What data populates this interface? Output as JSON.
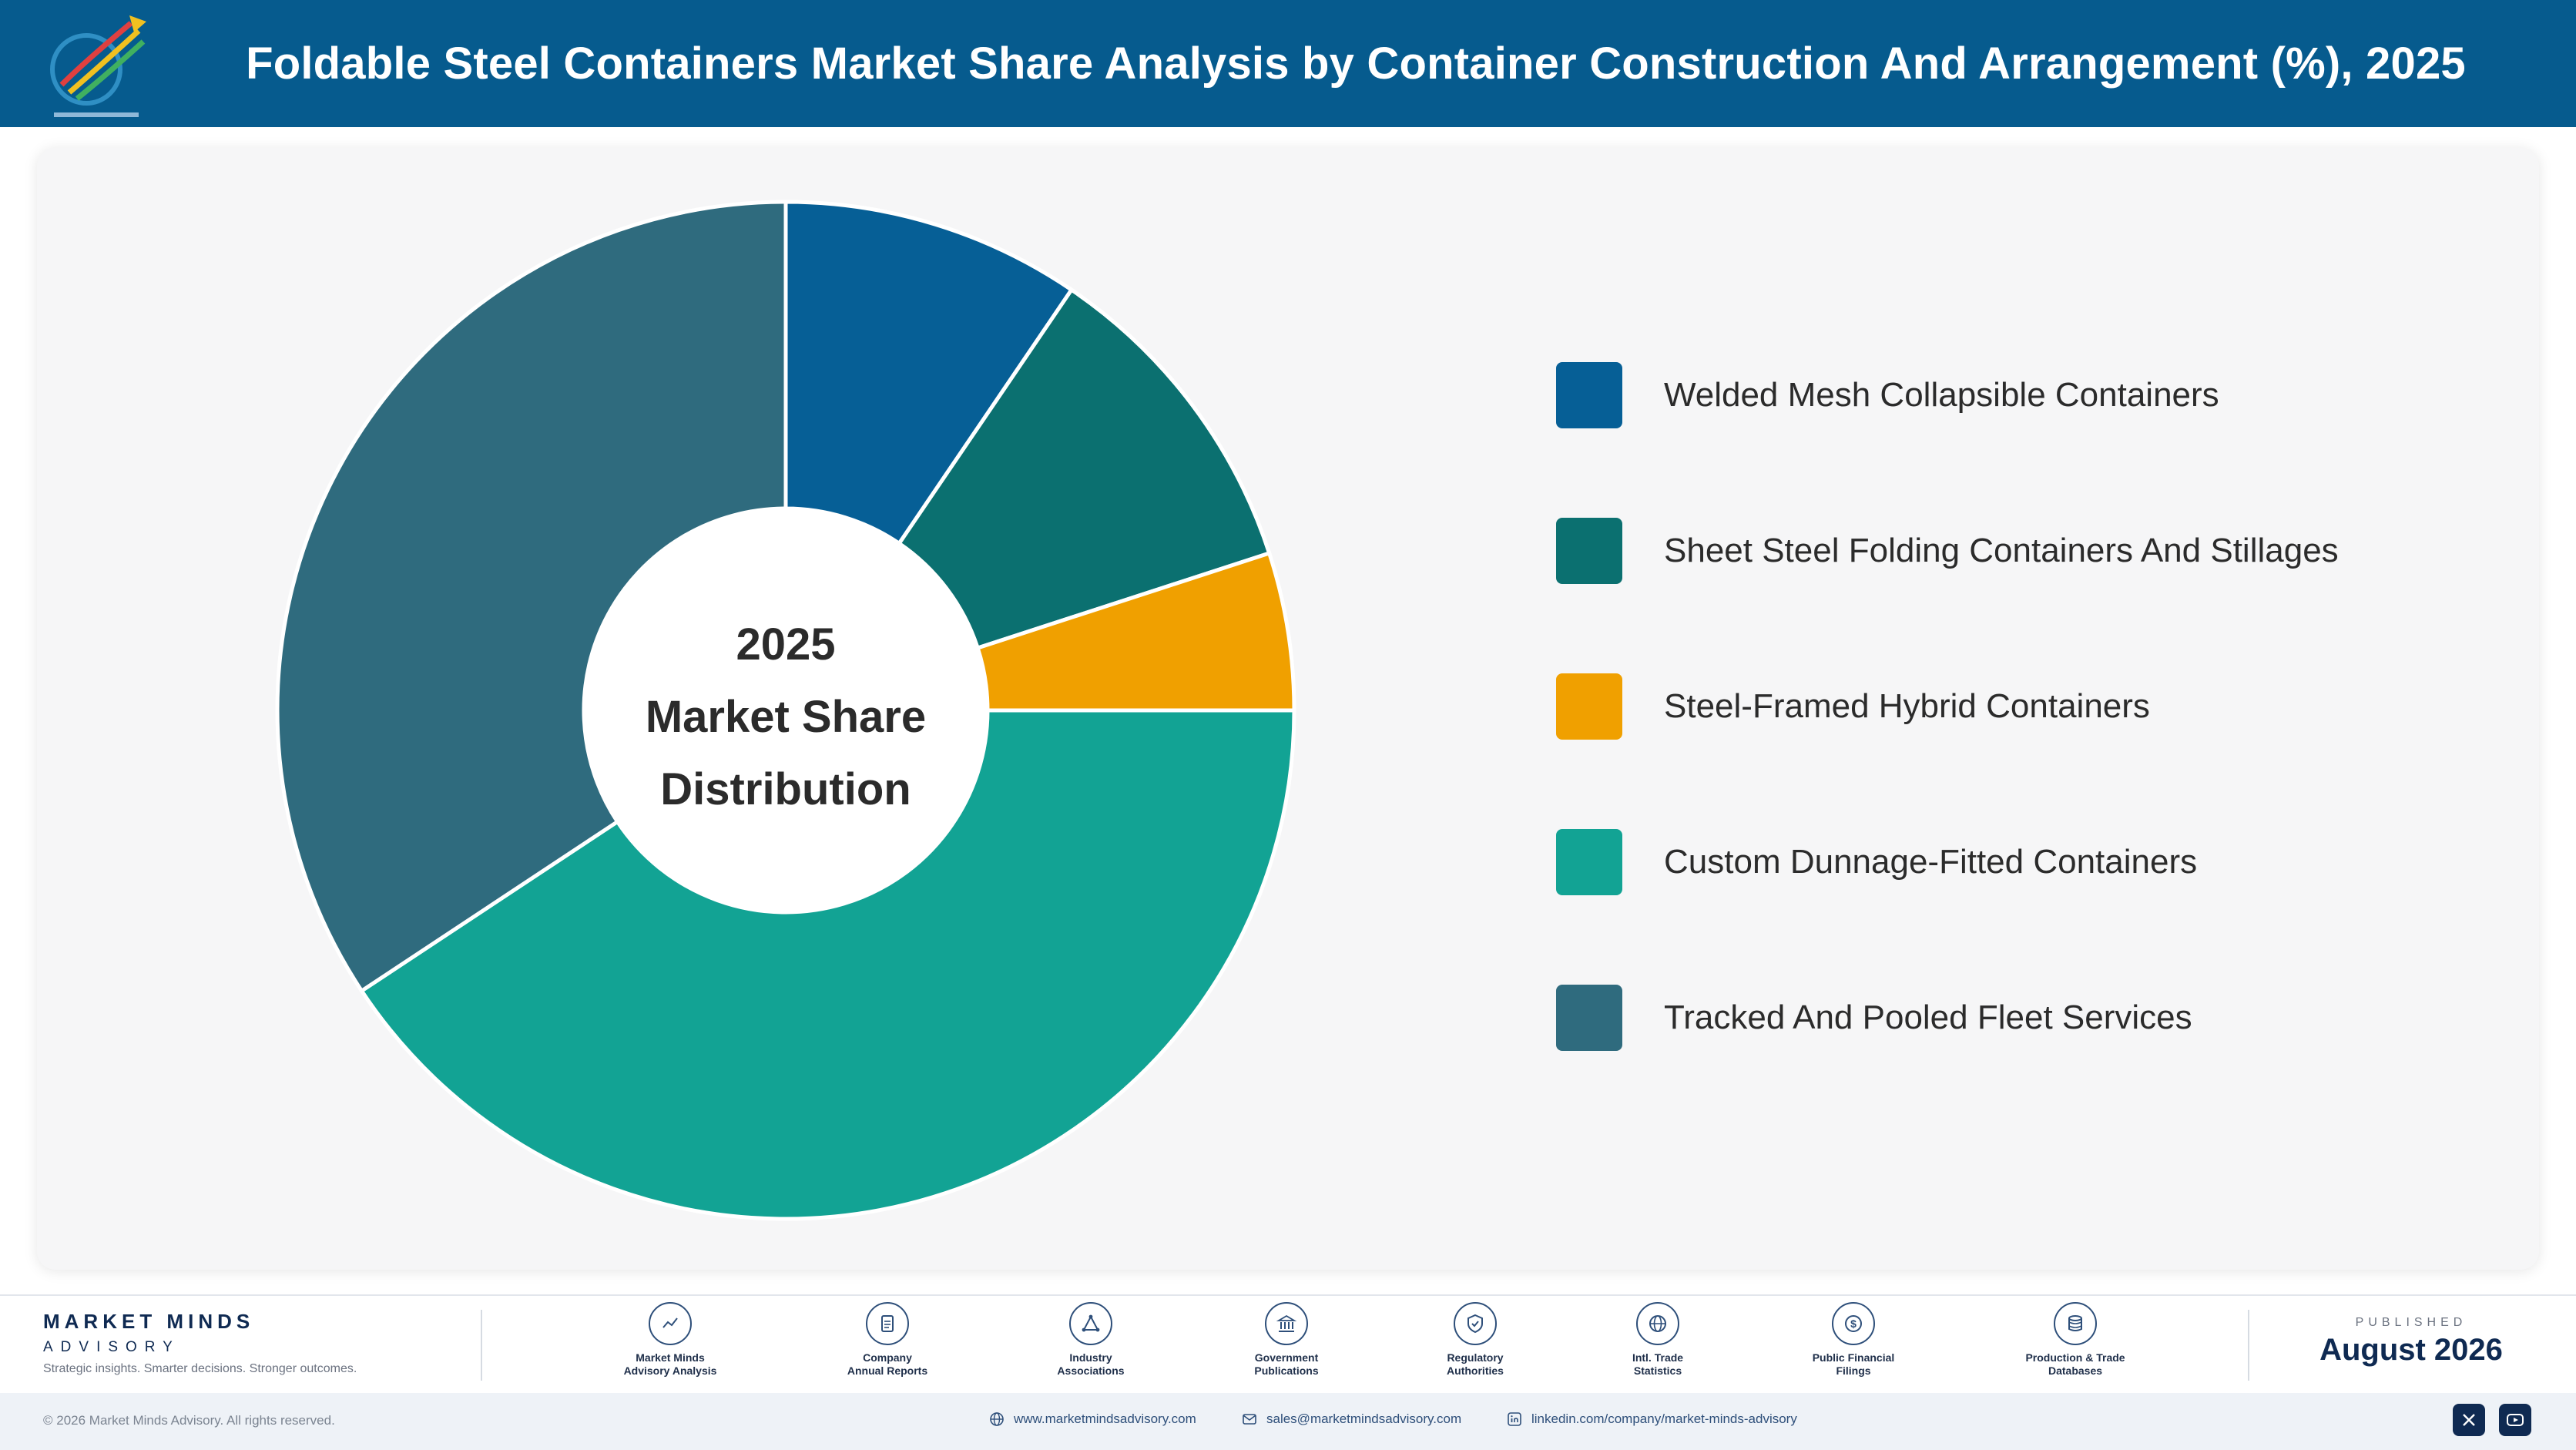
{
  "header": {
    "title": "Foldable Steel Containers Market Share Analysis by Container Construction And Arrangement (%), 2025",
    "logo_icon": "market-minds-logo"
  },
  "chart_data": {
    "type": "pie",
    "title": "Foldable Steel Containers Market Share Analysis by Container Construction And Arrangement (%), 2025",
    "center_label": [
      "2025",
      "Market Share",
      "Distribution"
    ],
    "legend_position": "right",
    "categories": [
      "Welded Mesh Collapsible Containers",
      "Sheet Steel Folding Containers And Stillages",
      "Steel-Framed Hybrid Containers",
      "Custom Dunnage-Fitted Containers",
      "Tracked And Pooled Fleet Services"
    ],
    "values": [
      9.5,
      10.5,
      5,
      40.7,
      34.3
    ],
    "colors": [
      "#065f96",
      "#0b7070",
      "#f0a000",
      "#12a394",
      "#2f6b7e"
    ]
  },
  "footer": {
    "brand_name": "MARKET MINDS",
    "brand_sub": "ADVISORY",
    "tagline": "Strategic insights. Smarter decisions. Stronger outcomes.",
    "sources": [
      {
        "label": "Market Minds\nAdvisory Analysis",
        "icon": "trend-chart-icon"
      },
      {
        "label": "Company\nAnnual Reports",
        "icon": "document-icon"
      },
      {
        "label": "Industry\nAssociations",
        "icon": "network-icon"
      },
      {
        "label": "Government\nPublications",
        "icon": "government-building-icon"
      },
      {
        "label": "Regulatory\nAuthorities",
        "icon": "shield-check-icon"
      },
      {
        "label": "Intl. Trade\nStatistics",
        "icon": "globe-icon"
      },
      {
        "label": "Public Financial\nFilings",
        "icon": "dollar-coin-icon"
      },
      {
        "label": "Production & Trade\nDatabases",
        "icon": "database-icon"
      }
    ],
    "published_label": "PUBLISHED",
    "published_date": "August 2026",
    "copyright": "© 2026 Market Minds Advisory. All rights reserved.",
    "website": "www.marketmindsadvisory.com",
    "email": "sales@marketmindsadvisory.com",
    "linkedin": "linkedin.com/company/market-minds-advisory"
  }
}
